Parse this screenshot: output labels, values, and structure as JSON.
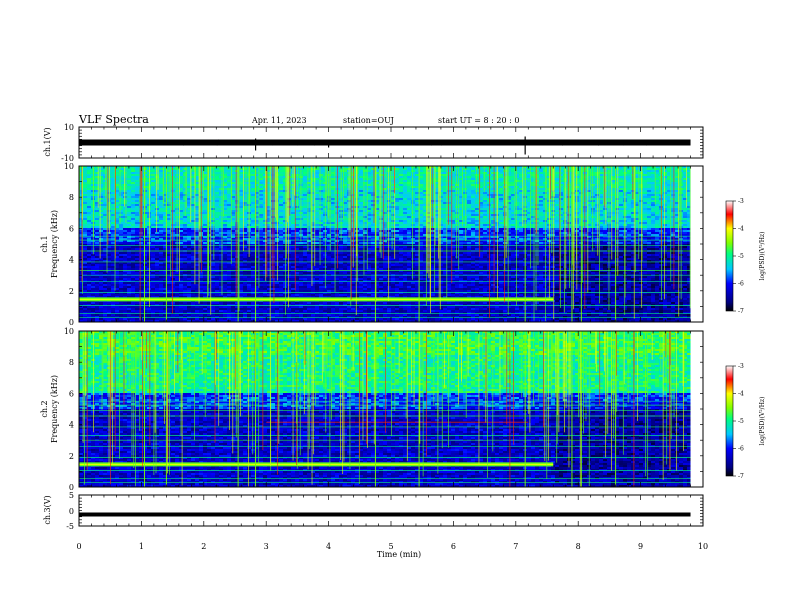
{
  "header": {
    "title": "VLF Spectra",
    "date": "Apr. 11, 2023",
    "station": "station=OUJ",
    "start": "start  UT =   8  : 20 : 0"
  },
  "chart_data": [
    {
      "type": "line",
      "panel": "ch1-waveform",
      "ylabel": "ch.1(V)",
      "ylim": [
        -10,
        10
      ],
      "yticks": [
        "10",
        "-10"
      ],
      "x": [
        0,
        1,
        2,
        3,
        4,
        5,
        6,
        7,
        8,
        9,
        9.8
      ],
      "y": [
        0,
        0,
        0,
        0,
        0,
        0,
        0,
        0,
        0,
        0,
        0
      ]
    },
    {
      "type": "heatmap",
      "panel": "ch1-spectrogram",
      "ylabel_line1": "ch.1",
      "ylabel_line2": "Frequency (kHz)",
      "ylim": [
        0,
        10
      ],
      "yticks": [
        "0",
        "2",
        "4",
        "6",
        "8",
        "10"
      ],
      "colorbar": {
        "label": "log(PSD)(V²/Hz)",
        "range": [
          -7,
          -3
        ],
        "ticks": [
          "-3",
          "-4",
          "-5",
          "-6",
          "-7"
        ]
      }
    },
    {
      "type": "heatmap",
      "panel": "ch2-spectrogram",
      "ylabel_line1": "ch.2",
      "ylabel_line2": "Frequency (kHz)",
      "ylim": [
        0,
        10
      ],
      "yticks": [
        "0",
        "2",
        "4",
        "6",
        "8",
        "10"
      ],
      "colorbar": {
        "label": "log(PSD)(V²/Hz)",
        "range": [
          -7,
          -3
        ],
        "ticks": [
          "-3",
          "-4",
          "-5",
          "-6",
          "-7"
        ]
      }
    },
    {
      "type": "line",
      "panel": "ch3-waveform",
      "ylabel": "ch.3(V)",
      "ylim": [
        -5,
        5
      ],
      "yticks": [
        "5",
        "0",
        "-5"
      ],
      "x": [
        0,
        9.8
      ],
      "y": [
        -1.3,
        -1.3
      ]
    }
  ],
  "xaxis": {
    "label": "Time  (min)",
    "range": [
      0,
      10
    ],
    "ticks": [
      "0",
      "1",
      "2",
      "3",
      "4",
      "5",
      "6",
      "7",
      "8",
      "9",
      "10"
    ]
  }
}
